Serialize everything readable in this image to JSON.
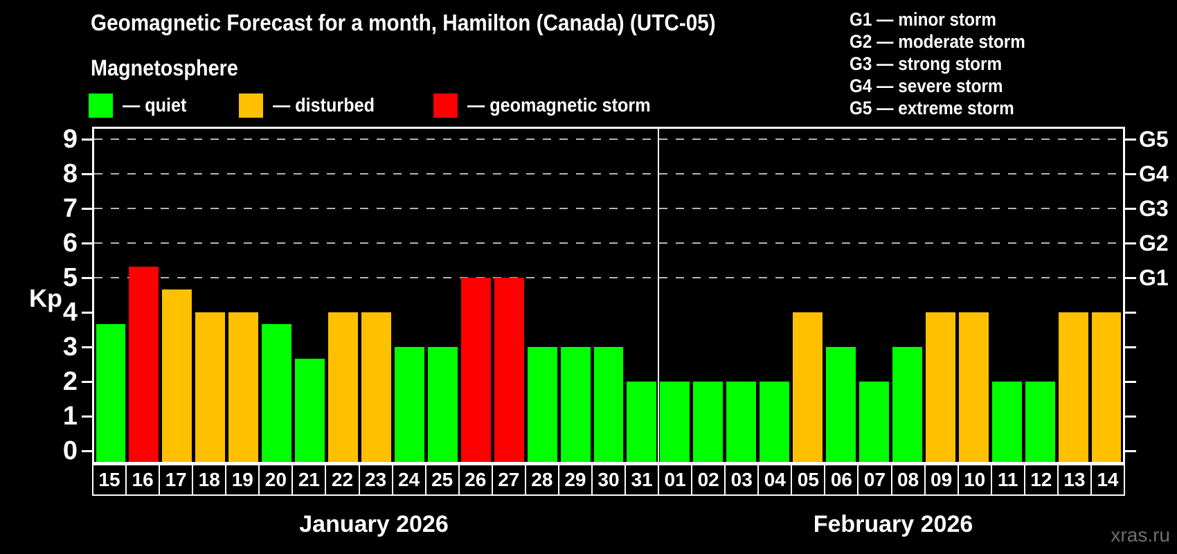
{
  "title": "Geomagnetic Forecast for a month, Hamilton (Canada) (UTC-05)",
  "subtitle": "Magnetosphere",
  "legend": {
    "quiet": {
      "label": "— quiet",
      "color": "#00ff00"
    },
    "disturbed": {
      "label": "— disturbed",
      "color": "#ffc000"
    },
    "storm": {
      "label": "— geomagnetic storm",
      "color": "#ff0000"
    }
  },
  "g_scale_legend": {
    "lines": [
      "G1 — minor storm",
      "G2 — moderate storm",
      "G3 — strong storm",
      "G4 — severe storm",
      "G5 — extreme storm"
    ]
  },
  "watermark": "xras.ru",
  "chart_data": {
    "type": "bar",
    "title": "Geomagnetic Forecast for a month, Hamilton (Canada) (UTC-05)",
    "ylabel": "Kp",
    "ylim": [
      0,
      9.35
    ],
    "y_ticks": [
      0,
      1,
      2,
      3,
      4,
      5,
      6,
      7,
      8,
      9
    ],
    "gridlines_at": [
      5,
      6,
      7,
      8,
      9
    ],
    "grid": "dashed horizontal lines at storm levels only",
    "legend_position": "top",
    "right_axis_labels": [
      {
        "kp": 5,
        "label": "G1"
      },
      {
        "kp": 6,
        "label": "G2"
      },
      {
        "kp": 7,
        "label": "G3"
      },
      {
        "kp": 8,
        "label": "G4"
      },
      {
        "kp": 9,
        "label": "G5"
      }
    ],
    "months": [
      {
        "label": "January 2026",
        "days": 17
      },
      {
        "label": "February 2026",
        "days": 14
      }
    ],
    "bars": [
      {
        "day": "15",
        "value": 3.67,
        "status": "quiet"
      },
      {
        "day": "16",
        "value": 5.33,
        "status": "storm"
      },
      {
        "day": "17",
        "value": 4.67,
        "status": "disturbed"
      },
      {
        "day": "18",
        "value": 4,
        "status": "disturbed"
      },
      {
        "day": "19",
        "value": 4,
        "status": "disturbed"
      },
      {
        "day": "20",
        "value": 3.67,
        "status": "quiet"
      },
      {
        "day": "21",
        "value": 2.67,
        "status": "quiet"
      },
      {
        "day": "22",
        "value": 4,
        "status": "disturbed"
      },
      {
        "day": "23",
        "value": 4,
        "status": "disturbed"
      },
      {
        "day": "24",
        "value": 3,
        "status": "quiet"
      },
      {
        "day": "25",
        "value": 3,
        "status": "quiet"
      },
      {
        "day": "26",
        "value": 5,
        "status": "storm"
      },
      {
        "day": "27",
        "value": 5,
        "status": "storm"
      },
      {
        "day": "28",
        "value": 3,
        "status": "quiet"
      },
      {
        "day": "29",
        "value": 3,
        "status": "quiet"
      },
      {
        "day": "30",
        "value": 3,
        "status": "quiet"
      },
      {
        "day": "31",
        "value": 2,
        "status": "quiet"
      },
      {
        "day": "01",
        "value": 2,
        "status": "quiet"
      },
      {
        "day": "02",
        "value": 2,
        "status": "quiet"
      },
      {
        "day": "03",
        "value": 2,
        "status": "quiet"
      },
      {
        "day": "04",
        "value": 2,
        "status": "quiet"
      },
      {
        "day": "05",
        "value": 4,
        "status": "disturbed"
      },
      {
        "day": "06",
        "value": 3,
        "status": "quiet"
      },
      {
        "day": "07",
        "value": 2,
        "status": "quiet"
      },
      {
        "day": "08",
        "value": 3,
        "status": "quiet"
      },
      {
        "day": "09",
        "value": 4,
        "status": "disturbed"
      },
      {
        "day": "10",
        "value": 4,
        "status": "disturbed"
      },
      {
        "day": "11",
        "value": 2,
        "status": "quiet"
      },
      {
        "day": "12",
        "value": 2,
        "status": "quiet"
      },
      {
        "day": "13",
        "value": 4,
        "status": "disturbed"
      },
      {
        "day": "14",
        "value": 4,
        "status": "disturbed"
      }
    ]
  }
}
